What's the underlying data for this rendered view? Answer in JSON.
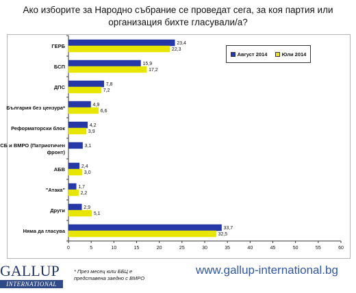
{
  "title": "Ако изборите за Народно събрание се проведат сега, за коя партия или организация бихте гласували/а?",
  "legend": {
    "series_1": "Август 2014",
    "series_2": "Юли 2014"
  },
  "colors": {
    "series_1": "#2638a8",
    "series_2": "#e6e600"
  },
  "chart_data": {
    "type": "bar",
    "orientation": "horizontal",
    "categories": [
      "ГЕРБ",
      "БСП",
      "ДПС",
      "България без цензура*",
      "Реформаторски блок",
      "ПФСБ и ВМРО (Патриотичен фронт)",
      "АБВ",
      "\"Атака\"",
      "Други",
      "Няма да гласува"
    ],
    "series": [
      {
        "name": "Август 2014",
        "values": [
          23.4,
          15.9,
          7.8,
          4.9,
          4.2,
          3.1,
          2.4,
          1.7,
          2.9,
          33.7
        ]
      },
      {
        "name": "Юли 2014",
        "values": [
          22.3,
          17.2,
          7.2,
          6.6,
          3.9,
          null,
          3.0,
          2.2,
          5.1,
          32.5
        ]
      }
    ],
    "value_labels": [
      [
        "23,4",
        "15,9",
        "7,8",
        "4,9",
        "4,2",
        "3,1",
        "2,4",
        "1,7",
        "2,9",
        "33,7"
      ],
      [
        "22,3",
        "17,2",
        "7,2",
        "6,6",
        "3,9",
        "",
        "3,0",
        "2,2",
        "5,1",
        "32,5"
      ]
    ],
    "xlim": [
      0,
      60
    ],
    "xticks": [
      "0",
      "5",
      "10",
      "15",
      "20",
      "25",
      "30",
      "35",
      "40",
      "45",
      "50",
      "55",
      "60"
    ],
    "legend_position": "top-right",
    "grid": false
  },
  "logo": {
    "main": "GALLUP",
    "sub": "INTERNATIONAL"
  },
  "footnote": "* През месец юли ББЦ е представена заедно с ВМРО",
  "website": "www.gallup-international.bg"
}
